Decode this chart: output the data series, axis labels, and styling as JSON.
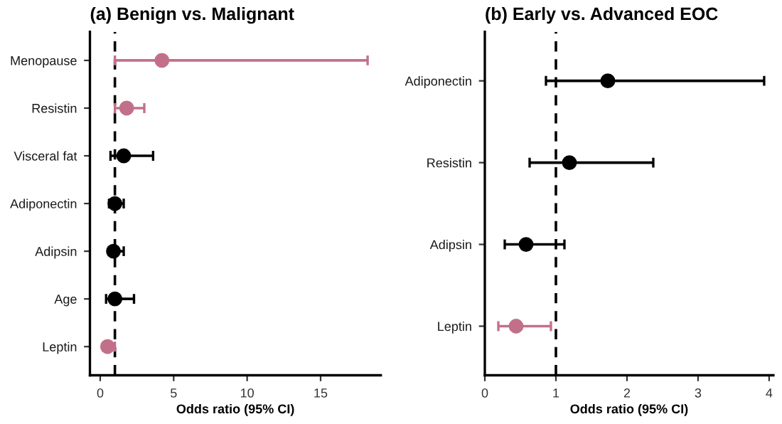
{
  "chart_data": [
    {
      "type": "scatter",
      "title": "(a) Benign vs. Malignant",
      "xlabel": "Odds ratio (95% CI)",
      "orientation": "horizontal",
      "categories": [
        "Menopause",
        "Resistin",
        "Visceral fat",
        "Adiponectin",
        "Adipsin",
        "Age",
        "Leptin"
      ],
      "values": [
        4.2,
        1.8,
        1.6,
        1.0,
        0.9,
        1.0,
        0.5
      ],
      "errors": [
        [
          1.0,
          18.2
        ],
        [
          1.0,
          3.0
        ],
        [
          0.7,
          3.6
        ],
        [
          0.6,
          1.6
        ],
        [
          0.6,
          1.6
        ],
        [
          0.4,
          2.3
        ],
        [
          0.2,
          1.0
        ]
      ],
      "colors": [
        "#c2708a",
        "#c2708a",
        "#000000",
        "#000000",
        "#000000",
        "#000000",
        "#c2708a"
      ],
      "xlim": [
        -0.7,
        19.1
      ],
      "xticks": [
        0,
        5,
        10,
        15
      ],
      "ref_lines": [
        {
          "axis": "x",
          "value": 1,
          "line_style": "dashed",
          "color": "#000000"
        }
      ],
      "marker": "circle",
      "grid": false
    },
    {
      "type": "scatter",
      "title": "(b) Early vs. Advanced EOC",
      "xlabel": "Odds ratio (95% CI)",
      "orientation": "horizontal",
      "categories": [
        "Adiponectin",
        "Resistin",
        "Adipsin",
        "Leptin"
      ],
      "values": [
        1.73,
        1.19,
        0.58,
        0.44
      ],
      "errors": [
        [
          0.86,
          3.93
        ],
        [
          0.63,
          2.37
        ],
        [
          0.28,
          1.12
        ],
        [
          0.19,
          0.93
        ]
      ],
      "colors": [
        "#000000",
        "#000000",
        "#000000",
        "#c2708a"
      ],
      "xlim": [
        0,
        4.06
      ],
      "xticks": [
        0,
        1,
        2,
        3,
        4
      ],
      "ref_lines": [
        {
          "axis": "x",
          "value": 1,
          "line_style": "dashed",
          "color": "#000000"
        }
      ],
      "marker": "circle",
      "grid": false
    }
  ]
}
